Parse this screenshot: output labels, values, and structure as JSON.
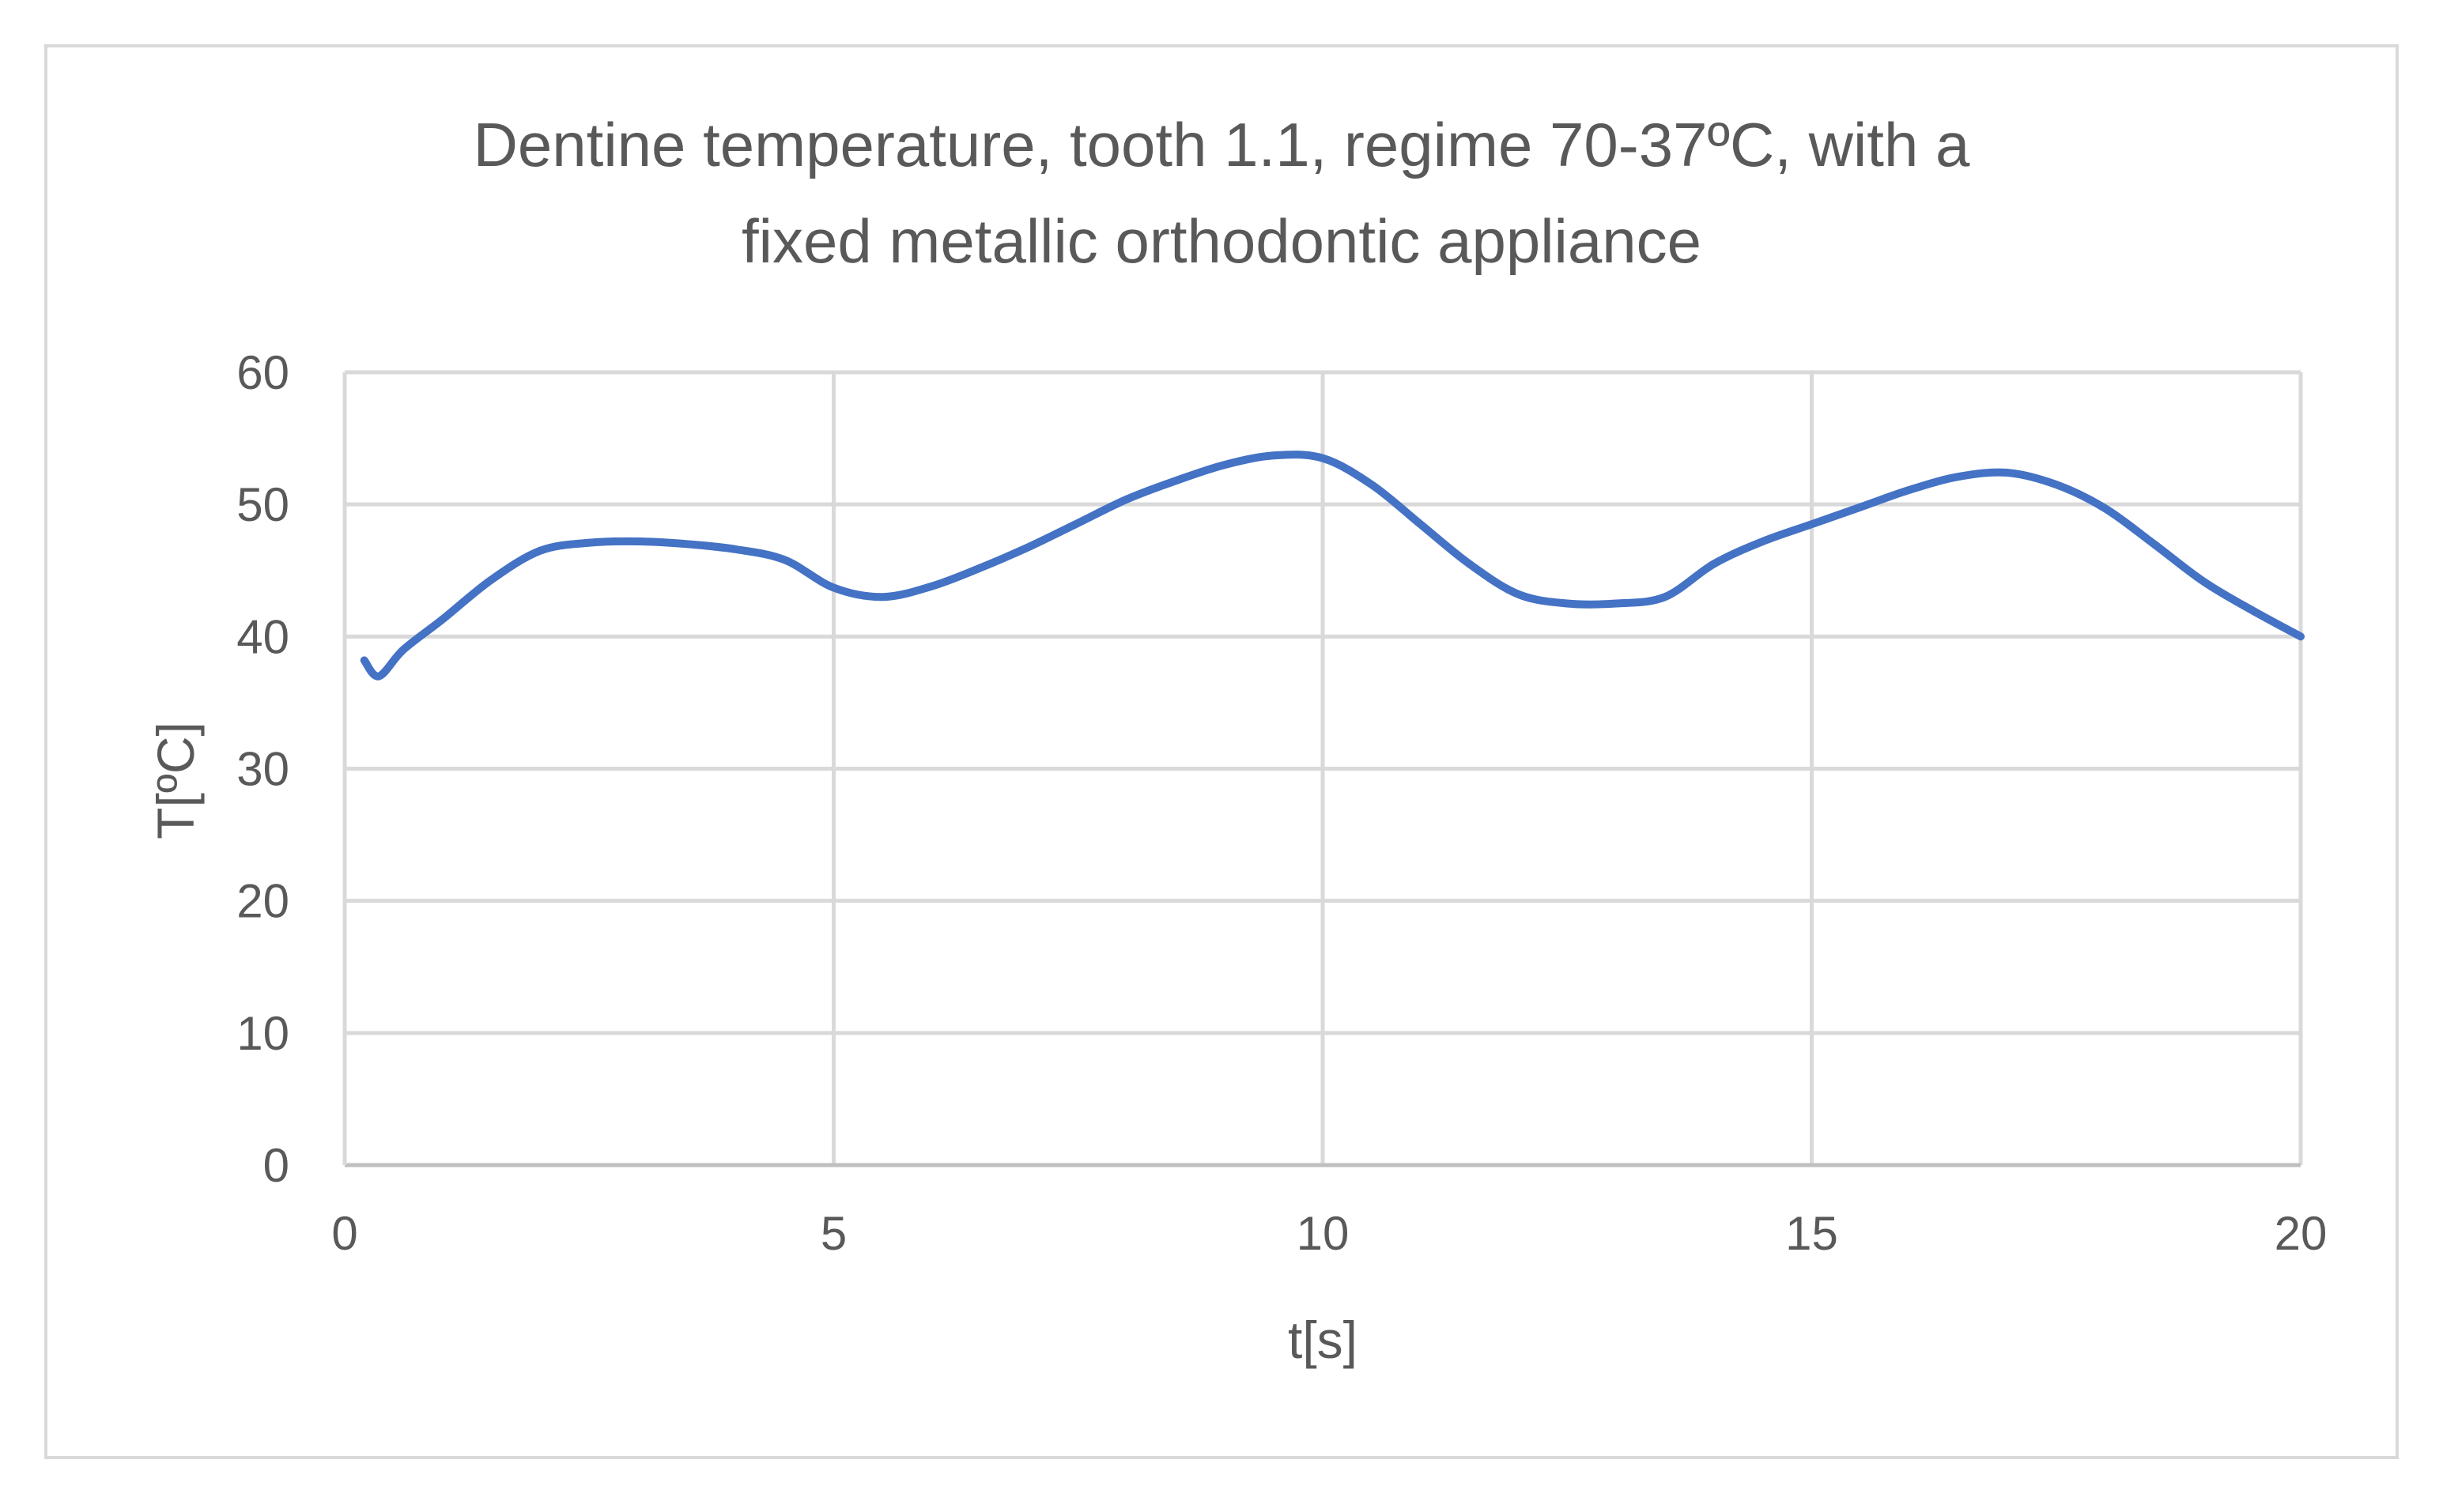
{
  "chart_data": {
    "type": "line",
    "title": "Dentine temperature, tooth 1.1, regime 70-37ºC, with a fixed metallic orthodontic appliance",
    "title_lines": [
      "Dentine temperature, tooth 1.1, regime 70-37ºC, with a",
      "fixed metallic orthodontic appliance"
    ],
    "xlabel": "t[s]",
    "ylabel": "T[ºC]",
    "xlim": [
      0,
      20
    ],
    "ylim": [
      0,
      60
    ],
    "x_ticks": [
      0,
      5,
      10,
      15,
      20
    ],
    "y_ticks": [
      0,
      10,
      20,
      30,
      40,
      50,
      60
    ],
    "grid": true,
    "legend": "none",
    "line_color": "#4472c4",
    "series": [
      {
        "x": [
          0.2,
          0.35,
          0.6,
          1.0,
          1.5,
          2.0,
          2.5,
          3.0,
          3.5,
          4.0,
          4.5,
          5.0,
          5.5,
          6.0,
          6.5,
          7.0,
          7.5,
          8.0,
          8.5,
          9.0,
          9.5,
          10.0,
          10.5,
          11.0,
          11.5,
          12.0,
          12.5,
          13.0,
          13.5,
          14.0,
          14.5,
          15.0,
          15.5,
          16.0,
          16.5,
          17.0,
          17.5,
          18.0,
          18.5,
          19.0,
          19.5,
          20.0
        ],
        "values": [
          38.2,
          37.0,
          39.0,
          41.3,
          44.3,
          46.5,
          47.1,
          47.2,
          47.0,
          46.6,
          45.8,
          43.7,
          43.0,
          43.8,
          45.2,
          46.8,
          48.6,
          50.4,
          51.8,
          53.0,
          53.7,
          53.5,
          51.5,
          48.5,
          45.5,
          43.2,
          42.5,
          42.5,
          43.0,
          45.5,
          47.2,
          48.5,
          49.8,
          51.1,
          52.1,
          52.4,
          51.5,
          49.7,
          47.0,
          44.2,
          42.0,
          40.0
        ]
      }
    ]
  }
}
